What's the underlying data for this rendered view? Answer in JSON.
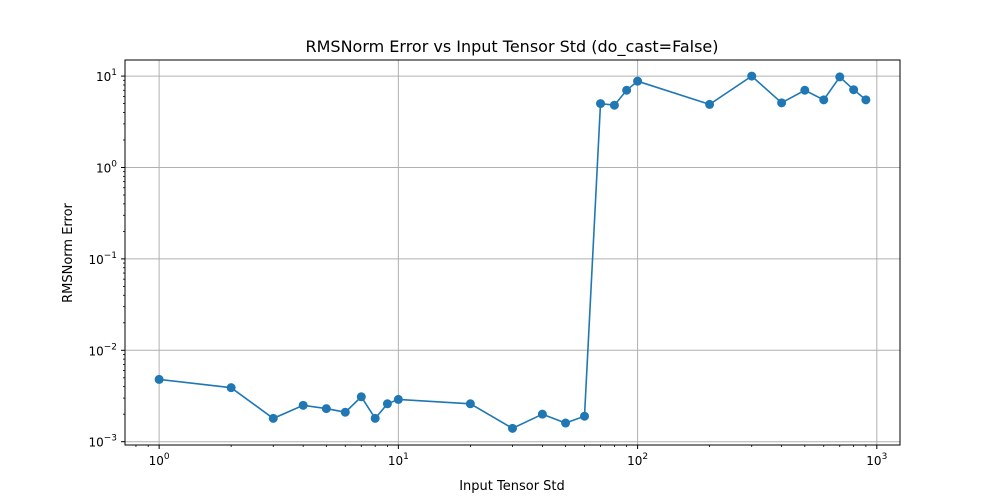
{
  "chart_data": {
    "type": "line",
    "title": "RMSNorm Error vs Input Tensor Std (do_cast=False)",
    "xlabel": "Input Tensor Std",
    "ylabel": "RMSNorm Error",
    "xscale": "log",
    "yscale": "log",
    "xlim": [
      0.72,
      1250
    ],
    "ylim": [
      0.00092,
      15
    ],
    "grid": true,
    "marker": "circle",
    "color": "#1f77b4",
    "x_ticks": [
      1,
      10,
      100,
      1000
    ],
    "x_tick_labels": [
      {
        "base": "10",
        "exp": "0"
      },
      {
        "base": "10",
        "exp": "1"
      },
      {
        "base": "10",
        "exp": "2"
      },
      {
        "base": "10",
        "exp": "3"
      }
    ],
    "y_ticks": [
      0.001,
      0.01,
      0.1,
      1,
      10
    ],
    "y_tick_labels": [
      {
        "base": "10",
        "exp": "−3"
      },
      {
        "base": "10",
        "exp": "−2"
      },
      {
        "base": "10",
        "exp": "−1"
      },
      {
        "base": "10",
        "exp": "0"
      },
      {
        "base": "10",
        "exp": "1"
      }
    ],
    "series": [
      {
        "x": [
          1,
          2,
          3,
          4,
          5,
          6,
          7,
          8,
          9,
          10,
          20,
          30,
          40,
          50,
          60,
          70,
          80,
          90,
          100,
          200,
          300,
          400,
          500,
          600,
          700,
          800,
          900
        ],
        "y": [
          0.0048,
          0.0039,
          0.0018,
          0.0025,
          0.0023,
          0.0021,
          0.0031,
          0.0018,
          0.0026,
          0.0029,
          0.0026,
          0.0014,
          0.002,
          0.0016,
          0.0019,
          5.0,
          4.8,
          7.0,
          8.8,
          4.9,
          10.0,
          5.1,
          7.0,
          5.5,
          9.8,
          7.1,
          5.5
        ]
      }
    ]
  }
}
